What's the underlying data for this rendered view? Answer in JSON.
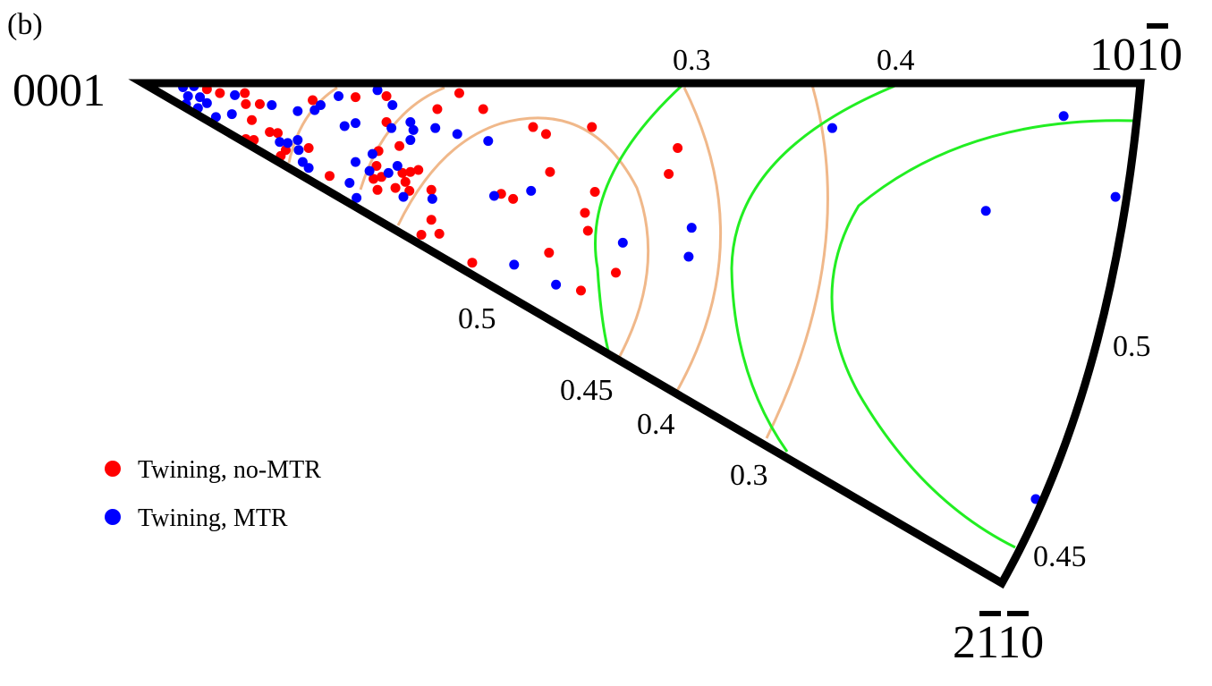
{
  "chart_data": {
    "type": "scatter",
    "panel_label": "(b)",
    "title": "",
    "coordinate_note": "Stereographic projection units: 0001 at (0,0), 10-10 at (100,0)",
    "corners": {
      "c0001": "0001",
      "c1010": {
        "text": "1010",
        "overbar_digit_index": 2
      },
      "c2110": {
        "text": "2110",
        "overbar_digit_indices": [
          1,
          2
        ]
      }
    },
    "contours": {
      "green": {
        "color": "#22ee22",
        "labels": {
          "top": "0.3",
          "bottom": "0.45",
          "right": "0.45"
        }
      },
      "orange": {
        "color": "#f0b88a",
        "labels": {
          "top": "0.4",
          "bottom_a": "0.5",
          "bottom_b": "0.4",
          "bottom_c": "0.3",
          "right": "0.5"
        }
      }
    },
    "legend": [
      {
        "name": "Twining, no-MTR",
        "color": "#ff0000"
      },
      {
        "name": "Twining, MTR",
        "color": "#0000ff"
      }
    ],
    "series": [
      {
        "name": "Twining, no-MTR",
        "color": "#ff0000",
        "points": [
          [
            6.4,
            0.6
          ],
          [
            7.7,
            1.0
          ],
          [
            10.2,
            1.0
          ],
          [
            10.3,
            2.1
          ],
          [
            11.7,
            2.1
          ],
          [
            10.9,
            3.7
          ],
          [
            12.7,
            4.9
          ],
          [
            13.5,
            5.0
          ],
          [
            10.3,
            5.6
          ],
          [
            11.1,
            5.7
          ],
          [
            16.6,
            6.5
          ],
          [
            14.3,
            6.7
          ],
          [
            13.8,
            7.3
          ],
          [
            17.0,
            1.7
          ],
          [
            21.3,
            1.4
          ],
          [
            24.4,
            1.3
          ],
          [
            24.4,
            3.9
          ],
          [
            25.7,
            6.3
          ],
          [
            29.5,
            2.6
          ],
          [
            31.7,
            1.0
          ],
          [
            23.6,
            6.8
          ],
          [
            23.4,
            8.3
          ],
          [
            23.1,
            9.6
          ],
          [
            23.9,
            9.4
          ],
          [
            26.0,
            9.0
          ],
          [
            26.8,
            8.9
          ],
          [
            27.6,
            8.7
          ],
          [
            26.3,
            9.9
          ],
          [
            25.3,
            10.5
          ],
          [
            26.7,
            10.8
          ],
          [
            23.5,
            10.7
          ],
          [
            18.7,
            9.3
          ],
          [
            28.9,
            10.7
          ],
          [
            28.9,
            13.7
          ],
          [
            27.9,
            15.2
          ],
          [
            29.7,
            15.1
          ],
          [
            34.1,
            2.6
          ],
          [
            39.1,
            4.4
          ],
          [
            40.4,
            5.1
          ],
          [
            45.0,
            4.4
          ],
          [
            40.8,
            8.9
          ],
          [
            45.3,
            10.9
          ],
          [
            35.9,
            11.1
          ],
          [
            37.1,
            11.6
          ],
          [
            44.3,
            13.0
          ],
          [
            44.6,
            14.8
          ],
          [
            40.7,
            17.0
          ],
          [
            33.0,
            18.0
          ],
          [
            43.9,
            20.8
          ],
          [
            47.4,
            19.0
          ],
          [
            53.6,
            6.5
          ],
          [
            52.7,
            9.1
          ]
        ]
      },
      {
        "name": "Twining, MTR",
        "color": "#0000ff",
        "points": [
          [
            4.0,
            0.4
          ],
          [
            5.1,
            0.3
          ],
          [
            9.2,
            1.2
          ],
          [
            12.9,
            2.2
          ],
          [
            4.5,
            1.3
          ],
          [
            5.7,
            1.4
          ],
          [
            6.4,
            2.0
          ],
          [
            4.3,
            2.1
          ],
          [
            5.5,
            2.5
          ],
          [
            7.3,
            3.4
          ],
          [
            8.9,
            3.1
          ],
          [
            13.7,
            5.9
          ],
          [
            14.5,
            6.0
          ],
          [
            15.5,
            5.7
          ],
          [
            15.6,
            6.7
          ],
          [
            16.0,
            7.9
          ],
          [
            16.6,
            8.5
          ],
          [
            17.2,
            2.7
          ],
          [
            17.8,
            2.2
          ],
          [
            15.5,
            2.8
          ],
          [
            19.6,
            1.3
          ],
          [
            23.5,
            0.7
          ],
          [
            25.0,
            2.2
          ],
          [
            20.2,
            4.3
          ],
          [
            21.3,
            4.0
          ],
          [
            24.9,
            4.5
          ],
          [
            26.8,
            3.9
          ],
          [
            27.1,
            4.7
          ],
          [
            26.8,
            5.7
          ],
          [
            29.3,
            4.5
          ],
          [
            31.5,
            5.1
          ],
          [
            23.0,
            7.1
          ],
          [
            21.3,
            7.9
          ],
          [
            22.7,
            8.8
          ],
          [
            24.6,
            9.0
          ],
          [
            25.5,
            8.3
          ],
          [
            26.1,
            11.4
          ],
          [
            21.4,
            11.5
          ],
          [
            20.7,
            10.0
          ],
          [
            29.0,
            11.6
          ],
          [
            34.6,
            5.8
          ],
          [
            35.2,
            11.3
          ],
          [
            38.9,
            10.8
          ],
          [
            48.1,
            16.0
          ],
          [
            37.2,
            18.2
          ],
          [
            41.4,
            20.2
          ],
          [
            55.0,
            14.5
          ],
          [
            54.7,
            17.4
          ],
          [
            69.1,
            4.5
          ],
          [
            92.3,
            3.3
          ],
          [
            97.5,
            11.4
          ],
          [
            84.5,
            12.8
          ],
          [
            89.5,
            41.7
          ]
        ]
      }
    ]
  }
}
